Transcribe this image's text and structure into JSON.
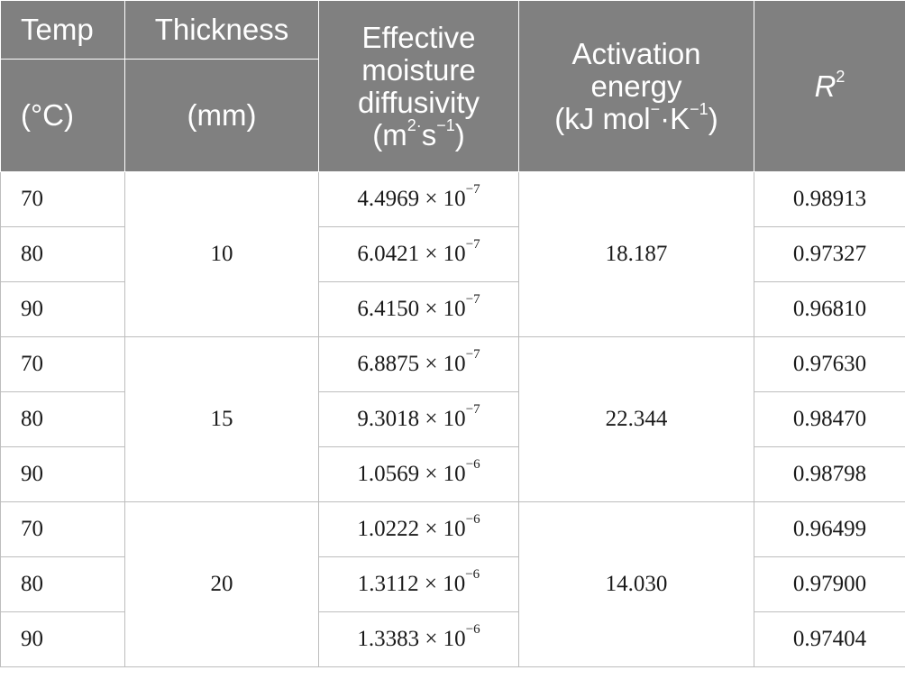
{
  "header": {
    "temp": "Temp",
    "temp_unit": "(°C)",
    "thickness": "Thickness",
    "thickness_unit": "(mm)",
    "diffusivity_line1": "Effective",
    "diffusivity_line2": "moisture",
    "diffusivity_line3": "diffusivity",
    "diffusivity_unit_a": "(m",
    "diffusivity_unit_b": "2·",
    "diffusivity_unit_c": "s",
    "diffusivity_unit_d": "−1",
    "diffusivity_unit_e": ")",
    "activation_line1": "Activation",
    "activation_line2": "energy",
    "activation_unit_a": "(kJ mol",
    "activation_unit_b": "−",
    "activation_unit_c": "·K",
    "activation_unit_d": "−1",
    "activation_unit_e": ")",
    "r2_base": "R",
    "r2_sup": "2"
  },
  "groups": [
    {
      "thickness": "10",
      "activation_energy": "18.187",
      "rows": [
        {
          "temp": "70",
          "mantissa": "4.4969 × 10",
          "exp": "−7",
          "r2": "0.98913"
        },
        {
          "temp": "80",
          "mantissa": "6.0421 × 10",
          "exp": "−7",
          "r2": "0.97327"
        },
        {
          "temp": "90",
          "mantissa": "6.4150 × 10",
          "exp": "−7",
          "r2": "0.96810"
        }
      ]
    },
    {
      "thickness": "15",
      "activation_energy": "22.344",
      "rows": [
        {
          "temp": "70",
          "mantissa": "6.8875 × 10",
          "exp": "−7",
          "r2": "0.97630"
        },
        {
          "temp": "80",
          "mantissa": "9.3018 × 10",
          "exp": "−7",
          "r2": "0.98470"
        },
        {
          "temp": "90",
          "mantissa": "1.0569 × 10",
          "exp": "−6",
          "r2": "0.98798"
        }
      ]
    },
    {
      "thickness": "20",
      "activation_energy": "14.030",
      "rows": [
        {
          "temp": "70",
          "mantissa": "1.0222 × 10",
          "exp": "−6",
          "r2": "0.96499"
        },
        {
          "temp": "80",
          "mantissa": "1.3112 × 10",
          "exp": "−6",
          "r2": "0.97900"
        },
        {
          "temp": "90",
          "mantissa": "1.3383 × 10",
          "exp": "−6",
          "r2": "0.97404"
        }
      ]
    }
  ]
}
